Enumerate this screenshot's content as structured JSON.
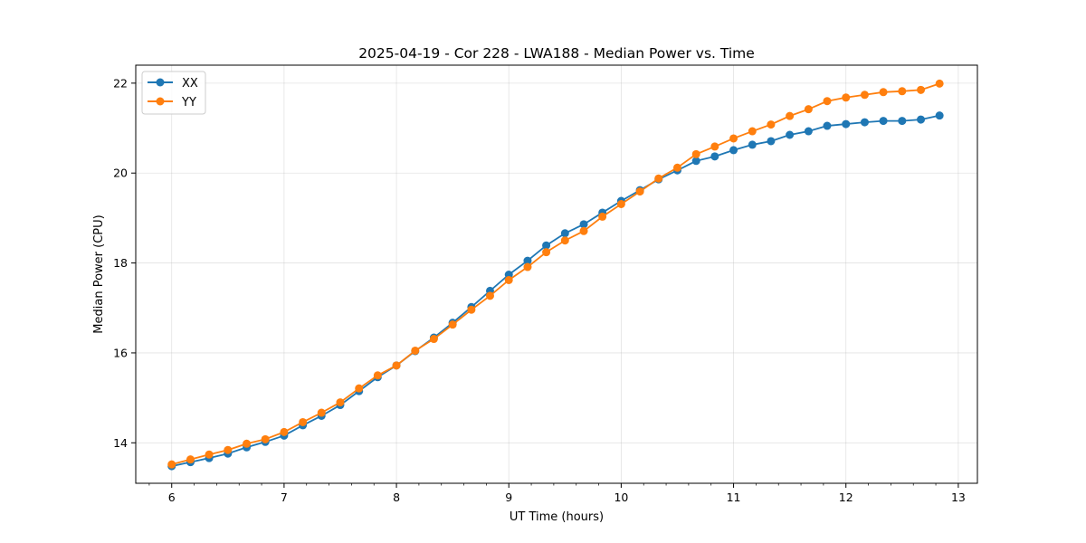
{
  "chart_data": {
    "type": "line",
    "title": "2025-04-19 - Cor 228 - LWA188 - Median Power vs. Time",
    "xlabel": "UT Time (hours)",
    "ylabel": "Median Power (CPU)",
    "xlim": [
      5.68,
      13.17
    ],
    "ylim": [
      13.1,
      22.4
    ],
    "xticks": [
      6,
      7,
      8,
      9,
      10,
      11,
      12,
      13
    ],
    "xtick_labels": [
      "6",
      "7",
      "8",
      "9",
      "10",
      "11",
      "12",
      "13"
    ],
    "yticks": [
      14,
      16,
      18,
      20,
      22
    ],
    "ytick_labels": [
      "14",
      "16",
      "18",
      "20",
      "22"
    ],
    "grid": true,
    "legend_position": "upper-left",
    "x": [
      6.0,
      6.167,
      6.333,
      6.5,
      6.667,
      6.833,
      7.0,
      7.167,
      7.333,
      7.5,
      7.667,
      7.833,
      8.0,
      8.167,
      8.333,
      8.5,
      8.667,
      8.833,
      9.0,
      9.167,
      9.333,
      9.5,
      9.667,
      9.833,
      10.0,
      10.167,
      10.333,
      10.5,
      10.667,
      10.833,
      11.0,
      11.167,
      11.333,
      11.5,
      11.667,
      11.833,
      12.0,
      12.167,
      12.333,
      12.5,
      12.667,
      12.833
    ],
    "series": [
      {
        "name": "XX",
        "color": "#1f77b4",
        "values": [
          13.48,
          13.57,
          13.66,
          13.76,
          13.9,
          14.02,
          14.16,
          14.39,
          14.6,
          14.84,
          15.15,
          15.46,
          15.72,
          16.04,
          16.34,
          16.67,
          17.02,
          17.38,
          17.74,
          18.05,
          18.39,
          18.66,
          18.86,
          19.12,
          19.38,
          19.62,
          19.86,
          20.06,
          20.27,
          20.37,
          20.51,
          20.63,
          20.71,
          20.85,
          20.93,
          21.05,
          21.09,
          21.13,
          21.16,
          21.16,
          21.19,
          21.28
        ]
      },
      {
        "name": "YY",
        "color": "#ff7f0e",
        "values": [
          13.52,
          13.63,
          13.74,
          13.84,
          13.98,
          14.08,
          14.24,
          14.46,
          14.67,
          14.9,
          15.21,
          15.5,
          15.72,
          16.05,
          16.31,
          16.63,
          16.96,
          17.27,
          17.62,
          17.91,
          18.24,
          18.5,
          18.71,
          19.03,
          19.31,
          19.59,
          19.88,
          20.12,
          20.42,
          20.59,
          20.77,
          20.93,
          21.08,
          21.27,
          21.42,
          21.6,
          21.68,
          21.74,
          21.8,
          21.82,
          21.85,
          21.99
        ]
      }
    ]
  }
}
